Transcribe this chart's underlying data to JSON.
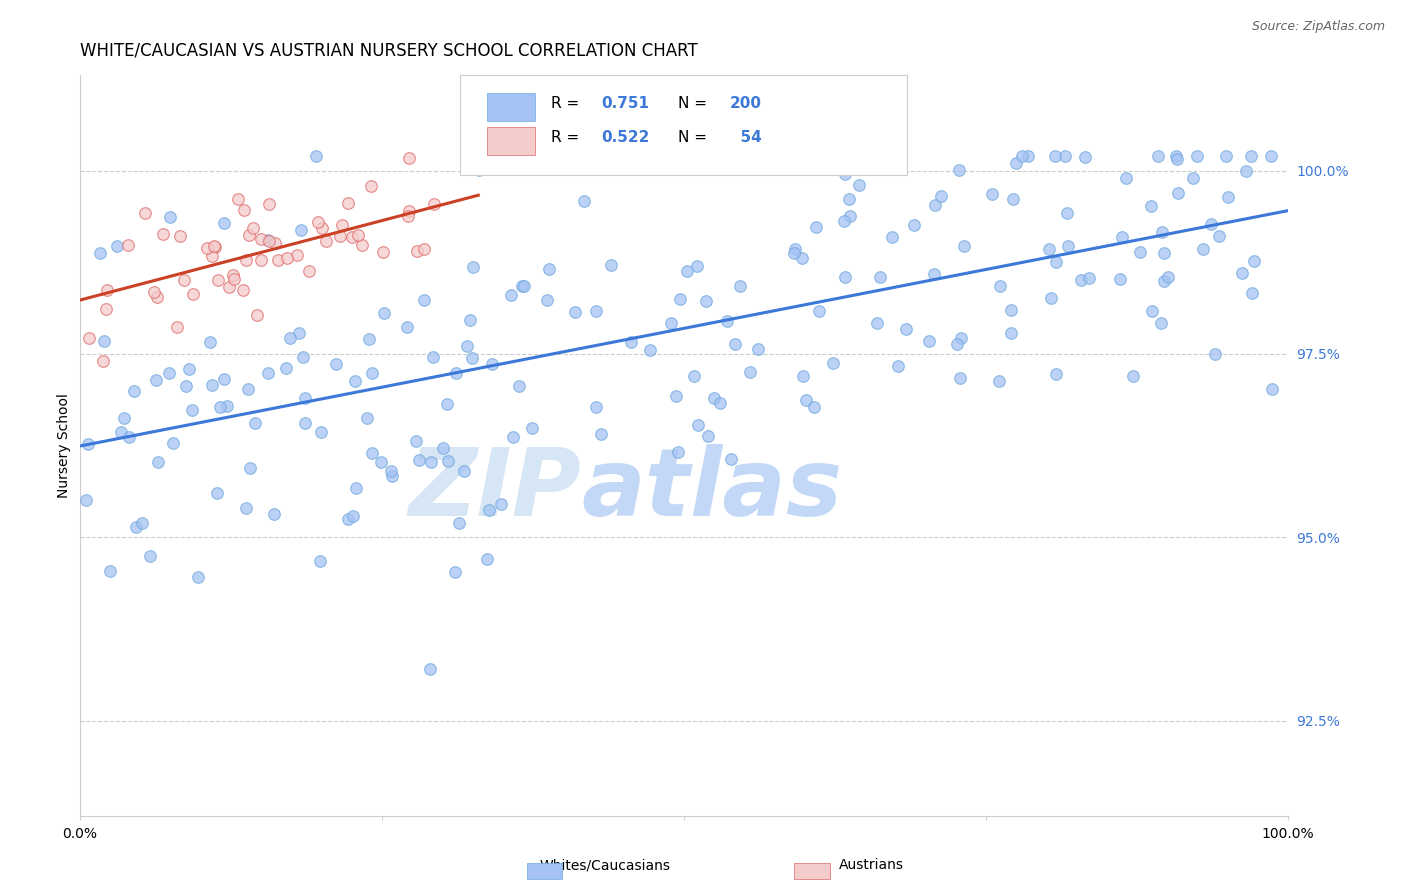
{
  "title": "WHITE/CAUCASIAN VS AUSTRIAN NURSERY SCHOOL CORRELATION CHART",
  "source": "Source: ZipAtlas.com",
  "ylabel": "Nursery School",
  "legend_labels": [
    "Whites/Caucasians",
    "Austrians"
  ],
  "blue_color": "#a4c2f4",
  "pink_color": "#f4cccc",
  "blue_line_color": "#3c78d8",
  "pink_line_color": "#cc4125",
  "blue_edge_color": "#6fa8dc",
  "pink_edge_color": "#e06666",
  "axis_color": "#cccccc",
  "right_tick_color": "#3c78d8",
  "watermark_zip_color": "#b7cefa",
  "watermark_atlas_color": "#9fc5e8",
  "R_blue": 0.751,
  "N_blue": 200,
  "R_pink": 0.522,
  "N_pink": 54,
  "y_ticks": [
    92.5,
    95.0,
    97.5,
    100.0
  ],
  "x_range": [
    0.0,
    100.0
  ],
  "y_range": [
    91.2,
    101.3
  ],
  "blue_scatter_seed": 42,
  "pink_scatter_seed": 7,
  "title_fontsize": 12,
  "source_fontsize": 9,
  "blue_slope": 0.034,
  "blue_intercept": 96.1,
  "blue_noise": 1.3,
  "pink_slope": 0.046,
  "pink_intercept": 98.15,
  "pink_noise": 0.45,
  "pink_x_max": 30
}
